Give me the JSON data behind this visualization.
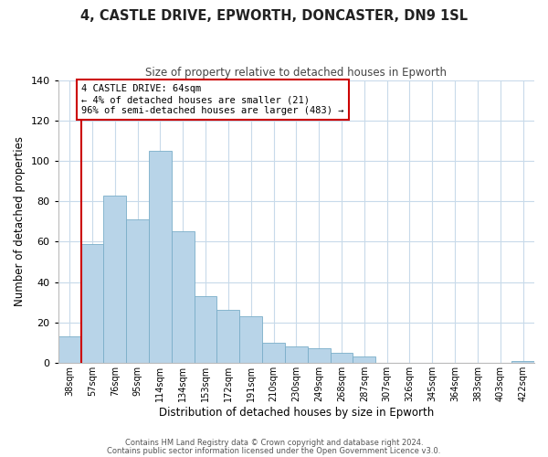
{
  "title": "4, CASTLE DRIVE, EPWORTH, DONCASTER, DN9 1SL",
  "subtitle": "Size of property relative to detached houses in Epworth",
  "xlabel": "Distribution of detached houses by size in Epworth",
  "ylabel": "Number of detached properties",
  "bar_labels": [
    "38sqm",
    "57sqm",
    "76sqm",
    "95sqm",
    "114sqm",
    "134sqm",
    "153sqm",
    "172sqm",
    "191sqm",
    "210sqm",
    "230sqm",
    "249sqm",
    "268sqm",
    "287sqm",
    "307sqm",
    "326sqm",
    "345sqm",
    "364sqm",
    "383sqm",
    "403sqm",
    "422sqm"
  ],
  "bar_values": [
    13,
    59,
    83,
    71,
    105,
    65,
    33,
    26,
    23,
    10,
    8,
    7,
    5,
    3,
    0,
    0,
    0,
    0,
    0,
    0,
    1
  ],
  "bar_color": "#b8d4e8",
  "bar_edge_color": "#7aaec8",
  "ylim": [
    0,
    140
  ],
  "yticks": [
    0,
    20,
    40,
    60,
    80,
    100,
    120,
    140
  ],
  "vline_color": "#cc0000",
  "annotation_title": "4 CASTLE DRIVE: 64sqm",
  "annotation_line1": "← 4% of detached houses are smaller (21)",
  "annotation_line2": "96% of semi-detached houses are larger (483) →",
  "annotation_box_color": "#ffffff",
  "annotation_box_edge": "#cc0000",
  "footer1": "Contains HM Land Registry data © Crown copyright and database right 2024.",
  "footer2": "Contains public sector information licensed under the Open Government Licence v3.0.",
  "background_color": "#ffffff",
  "grid_color": "#c8daea"
}
